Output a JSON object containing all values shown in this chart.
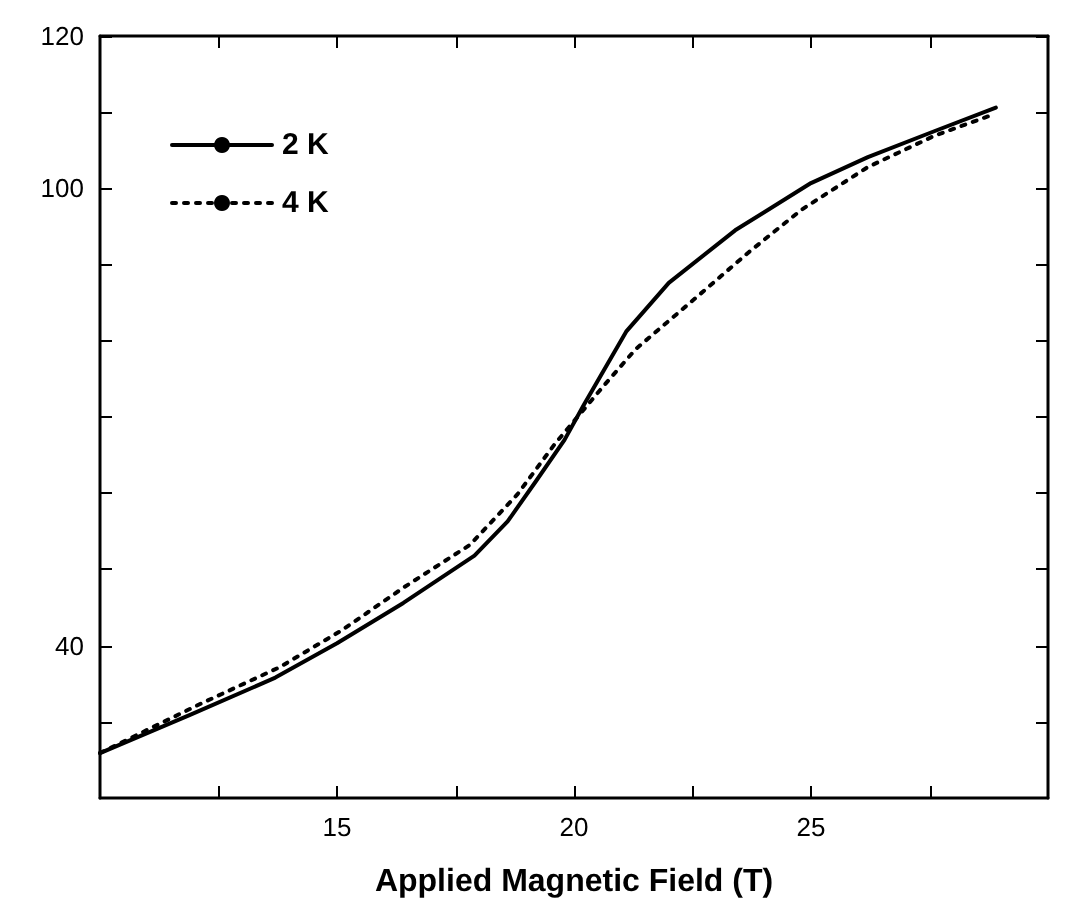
{
  "chart_data": {
    "type": "line",
    "xlabel": "Applied Magnetic Field (T)",
    "xlim": [
      10,
      30
    ],
    "xticks": [
      {
        "value": 12.5,
        "label": null
      },
      15,
      {
        "value": 17.5,
        "label": null
      },
      20,
      {
        "value": 22.5,
        "label": null
      },
      25,
      {
        "value": 27.5,
        "label": null
      }
    ],
    "ylim": [
      20,
      120
    ],
    "yticks": [
      {
        "value": 30,
        "label": null
      },
      40,
      {
        "value": 50,
        "label": null
      },
      {
        "value": 60,
        "label": null
      },
      {
        "value": 70,
        "label": null
      },
      {
        "value": 80,
        "label": null
      },
      {
        "value": 90,
        "label": null
      },
      100,
      {
        "value": 110,
        "label": null
      },
      120
    ],
    "grid": false,
    "legend": "top left",
    "marker": "none",
    "series": [
      {
        "name": "2 K",
        "color": "#000000",
        "line_style": "solid",
        "x": [
          10,
          11.9,
          13.7,
          15,
          16.4,
          17.9,
          18.6,
          19.2,
          19.8,
          20.2,
          21.1,
          22,
          23.4,
          25,
          26.2,
          27.6,
          28.9
        ],
        "values": [
          25.9,
          30.9,
          35.8,
          40.3,
          45.6,
          51.8,
          56.3,
          61.6,
          67,
          71.5,
          81.2,
          87.6,
          94.5,
          100.7,
          104.1,
          107.5,
          110.6
        ]
      },
      {
        "name": "4 K",
        "color": "#000000",
        "line_style": "dotted",
        "x": [
          10,
          12.1,
          13.8,
          15.1,
          16.4,
          17.8,
          18.8,
          19.6,
          20.6,
          21.3,
          22.6,
          23.7,
          24.8,
          26.2,
          27.6,
          28.8
        ],
        "values": [
          25.9,
          32.3,
          37.2,
          42,
          47.6,
          53.2,
          59.8,
          66.5,
          73.9,
          78.9,
          85.8,
          91.7,
          97.2,
          102.8,
          106.9,
          109.6
        ]
      }
    ]
  }
}
